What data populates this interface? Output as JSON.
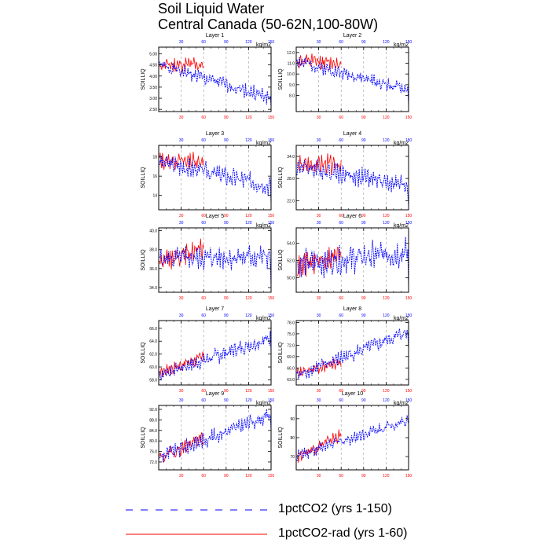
{
  "title": "Soil Liquid Water",
  "subtitle": "Central Canada (50-62N,100-80W)",
  "units_label": "kg/m2",
  "ylabel": "SOILLIQ",
  "colors": {
    "series_150": "#0000ff",
    "series_60": "#ff0000",
    "grid": "#999999"
  },
  "legend": [
    {
      "label": "1pctCO2 (yrs 1-150)",
      "color": "#0000ff",
      "style": "dashed"
    },
    {
      "label": "1pctCO2-rad (yrs 1-60)",
      "color": "#ff0000",
      "style": "solid"
    }
  ],
  "chart_data": [
    {
      "type": "line",
      "title": "Layer 1",
      "xlim": [
        0,
        150
      ],
      "xticks": [
        30,
        60,
        90,
        120,
        150
      ],
      "ylim": [
        2.4,
        5.3
      ],
      "yticks": [
        2.5,
        3.0,
        3.5,
        4.0,
        4.5,
        5.0
      ],
      "ytick_labels": [
        "2.50",
        "3.00",
        "3.50",
        "4.00",
        "4.50",
        "5.00"
      ],
      "blue": {
        "start": 4.5,
        "end": 3.0,
        "amp": 0.3,
        "seed": 1
      },
      "red": {
        "start": 4.5,
        "end": 4.5,
        "amp": 0.35,
        "seed": 11
      },
      "blue_end_drop": 2.6
    },
    {
      "type": "line",
      "title": "Layer 2",
      "xlim": [
        0,
        150
      ],
      "xticks": [
        30,
        60,
        90,
        120,
        150
      ],
      "ylim": [
        6.5,
        12.5
      ],
      "yticks": [
        8.0,
        9.0,
        10.0,
        11.0,
        12.0
      ],
      "ytick_labels": [
        "8.0",
        "9.0",
        "10.0",
        "11.0",
        "12.0"
      ],
      "blue": {
        "start": 11.2,
        "end": 8.5,
        "amp": 0.55,
        "seed": 2
      },
      "red": {
        "start": 11.2,
        "end": 11.0,
        "amp": 0.65,
        "seed": 12
      },
      "blue_end_drop": 7.0
    },
    {
      "type": "line",
      "title": "Layer 3",
      "xlim": [
        0,
        150
      ],
      "xticks": [
        30,
        60,
        90,
        120,
        150
      ],
      "ylim": [
        12.5,
        19.2
      ],
      "yticks": [
        14,
        16,
        18
      ],
      "ytick_labels": [
        "14",
        "16",
        "18"
      ],
      "blue": {
        "start": 17.5,
        "end": 15.0,
        "amp": 0.9,
        "seed": 3
      },
      "red": {
        "start": 17.6,
        "end": 17.6,
        "amp": 0.8,
        "seed": 13
      },
      "blue_end_drop": 13.0
    },
    {
      "type": "line",
      "title": "Layer 4",
      "xlim": [
        0,
        150
      ],
      "xticks": [
        30,
        60,
        90,
        120,
        150
      ],
      "ylim": [
        19.5,
        37.0
      ],
      "yticks": [
        22.0,
        28.0,
        34.0
      ],
      "ytick_labels": [
        "22.0",
        "28.0",
        "34.0"
      ],
      "blue": {
        "start": 31.5,
        "end": 26.0,
        "amp": 2.4,
        "seed": 4
      },
      "red": {
        "start": 31.5,
        "end": 32.0,
        "amp": 2.4,
        "seed": 14
      },
      "blue_end_drop": 20.5
    },
    {
      "type": "line",
      "title": "Layer 5",
      "xlim": [
        0,
        150
      ],
      "xticks": [
        30,
        60,
        90,
        120,
        150
      ],
      "ylim": [
        33.5,
        40.3
      ],
      "yticks": [
        34.0,
        36.0,
        38.0,
        40.0
      ],
      "ytick_labels": [
        "34.0",
        "36.0",
        "38.0",
        "40.0"
      ],
      "blue": {
        "start": 37.0,
        "end": 37.3,
        "amp": 1.1,
        "seed": 5
      },
      "red": {
        "start": 36.9,
        "end": 38.0,
        "amp": 1.0,
        "seed": 15
      },
      "blue_end_drop": 34.0
    },
    {
      "type": "line",
      "title": "Layer 6",
      "xlim": [
        0,
        150
      ],
      "xticks": [
        30,
        60,
        90,
        120,
        150
      ],
      "ylim": [
        48.3,
        55.8
      ],
      "yticks": [
        50.0,
        52.0,
        54.0
      ],
      "ytick_labels": [
        "50.0",
        "52.0",
        "54.0"
      ],
      "blue": {
        "start": 51.5,
        "end": 53.0,
        "amp": 1.5,
        "seed": 6
      },
      "red": {
        "start": 51.2,
        "end": 52.7,
        "amp": 1.2,
        "seed": 16
      },
      "blue_end_drop": 48.8
    },
    {
      "type": "line",
      "title": "Layer 7",
      "xlim": [
        0,
        150
      ],
      "xticks": [
        30,
        60,
        90,
        120,
        150
      ],
      "ylim": [
        57.2,
        67.2
      ],
      "yticks": [
        58.0,
        60.0,
        62.0,
        64.0,
        66.0
      ],
      "ytick_labels": [
        "58.0",
        "60.0",
        "62.0",
        "64.0",
        "66.0"
      ],
      "blue": {
        "start": 58.8,
        "end": 64.5,
        "amp": 1.1,
        "seed": 7
      },
      "red": {
        "start": 59.2,
        "end": 61.5,
        "amp": 0.9,
        "seed": 17
      },
      "blue_end_drop": 62.0
    },
    {
      "type": "line",
      "title": "Layer 8",
      "xlim": [
        0,
        150
      ],
      "xticks": [
        30,
        60,
        90,
        120,
        150
      ],
      "ylim": [
        61.5,
        78.5
      ],
      "yticks": [
        63.0,
        66.0,
        69.0,
        72.0,
        75.0,
        78.0
      ],
      "ytick_labels": [
        "63.0",
        "66.0",
        "69.0",
        "72.0",
        "75.0",
        "78.0"
      ],
      "blue": {
        "start": 64.0,
        "end": 75.5,
        "amp": 1.8,
        "seed": 8
      },
      "red": {
        "start": 64.5,
        "end": 67.5,
        "amp": 1.4,
        "seed": 18
      },
      "blue_end_drop": 71.0
    },
    {
      "type": "line",
      "title": "Layer 9",
      "xlim": [
        0,
        150
      ],
      "xticks": [
        30,
        60,
        90,
        120,
        150
      ],
      "ylim": [
        69.0,
        93.5
      ],
      "yticks": [
        72.0,
        76.0,
        80.0,
        84.0,
        88.0,
        92.0
      ],
      "ytick_labels": [
        "72.0",
        "76.0",
        "80.0",
        "84.0",
        "88.0",
        "92.0"
      ],
      "blue": {
        "start": 74.0,
        "end": 90.0,
        "amp": 2.6,
        "seed": 9
      },
      "red": {
        "start": 73.5,
        "end": 81.0,
        "amp": 2.6,
        "seed": 19
      },
      "blue_end_drop": 84.0
    },
    {
      "type": "line",
      "title": "Layer 10",
      "xlim": [
        0,
        150
      ],
      "xticks": [
        30,
        60,
        90,
        120,
        150
      ],
      "ylim": [
        63.0,
        97.0
      ],
      "yticks": [
        70,
        80,
        90
      ],
      "ytick_labels": [
        "70",
        "80",
        "90"
      ],
      "blue": {
        "start": 70.5,
        "end": 89.5,
        "amp": 3.0,
        "seed": 10
      },
      "red": {
        "start": 70.0,
        "end": 81.5,
        "amp": 3.0,
        "seed": 20
      },
      "blue_end_drop": 87.0
    }
  ]
}
